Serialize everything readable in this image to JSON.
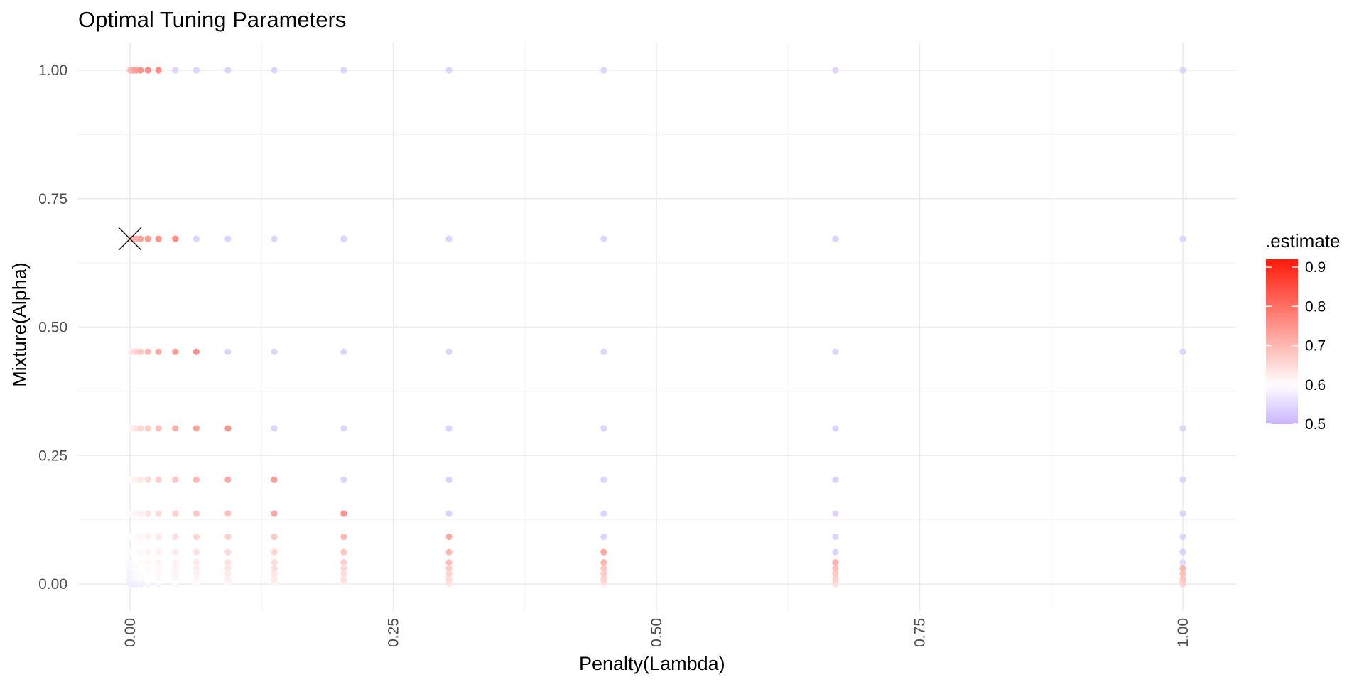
{
  "chart_data": {
    "type": "scatter",
    "title": "Optimal Tuning Parameters",
    "xlabel": "Penalty(Lambda)",
    "ylabel": "Mixture(Alpha)",
    "xlim": [
      -0.049,
      1.05
    ],
    "ylim": [
      -0.06,
      1.06
    ],
    "x_ticks": [
      0.0,
      0.25,
      0.5,
      0.75,
      1.0
    ],
    "x_tick_labels": [
      "0.00",
      "0.25",
      "0.50",
      "0.75",
      "1.00"
    ],
    "y_ticks": [
      0.0,
      0.25,
      0.5,
      0.75,
      1.0
    ],
    "y_tick_labels": [
      "0.00",
      "0.25",
      "0.50",
      "0.75",
      "1.00"
    ],
    "grid": true,
    "legend": {
      "title": ".estimate",
      "placement": "right",
      "min": 0.5,
      "max": 0.92,
      "ticks": [
        0.5,
        0.6,
        0.7,
        0.8,
        0.9
      ],
      "tick_labels": [
        "0.5",
        "0.6",
        "0.7",
        "0.8",
        "0.9"
      ],
      "colors": {
        "low": "#c8b4ff",
        "mid": "#ffffff",
        "mid_value": 0.6,
        "high": "#ff1a0a"
      }
    },
    "penalty_values": [
      0.0,
      0.001,
      0.003,
      0.006,
      0.01,
      0.017,
      0.027,
      0.043,
      0.063,
      0.093,
      0.137,
      0.203,
      0.303,
      0.45,
      0.67,
      1.0
    ],
    "mixture_values": [
      0.0,
      0.005,
      0.01,
      0.02,
      0.03,
      0.042,
      0.062,
      0.092,
      0.137,
      0.203,
      0.303,
      0.452,
      0.672,
      1.0
    ],
    "estimates": [
      [
        0.58,
        0.578,
        0.576,
        0.574,
        0.578,
        0.582,
        0.586,
        0.59,
        0.595,
        0.6,
        0.605,
        0.61,
        0.63,
        0.62,
        0.64,
        0.66
      ],
      [
        0.575,
        0.58,
        0.578,
        0.58,
        0.584,
        0.59,
        0.595,
        0.6,
        0.605,
        0.612,
        0.62,
        0.63,
        0.64,
        0.65,
        0.655,
        0.67
      ],
      [
        0.578,
        0.582,
        0.586,
        0.59,
        0.595,
        0.6,
        0.605,
        0.61,
        0.615,
        0.62,
        0.63,
        0.64,
        0.65,
        0.66,
        0.665,
        0.68
      ],
      [
        0.58,
        0.585,
        0.59,
        0.594,
        0.598,
        0.602,
        0.608,
        0.615,
        0.62,
        0.625,
        0.635,
        0.645,
        0.66,
        0.67,
        0.675,
        0.69
      ],
      [
        0.582,
        0.588,
        0.592,
        0.596,
        0.6,
        0.605,
        0.61,
        0.618,
        0.625,
        0.632,
        0.645,
        0.655,
        0.67,
        0.68,
        0.69,
        0.7
      ],
      [
        0.585,
        0.59,
        0.595,
        0.6,
        0.605,
        0.61,
        0.615,
        0.62,
        0.63,
        0.64,
        0.65,
        0.665,
        0.69,
        0.7,
        0.705,
        0.55
      ],
      [
        0.588,
        0.592,
        0.598,
        0.602,
        0.608,
        0.615,
        0.62,
        0.63,
        0.64,
        0.65,
        0.66,
        0.68,
        0.7,
        0.72,
        0.54,
        0.54
      ],
      [
        0.59,
        0.595,
        0.6,
        0.606,
        0.612,
        0.62,
        0.63,
        0.645,
        0.66,
        0.665,
        0.68,
        0.7,
        0.72,
        0.54,
        0.54,
        0.54
      ],
      [
        0.592,
        0.6,
        0.606,
        0.612,
        0.62,
        0.635,
        0.65,
        0.665,
        0.68,
        0.69,
        0.72,
        0.75,
        0.54,
        0.54,
        0.54,
        0.54
      ],
      [
        0.596,
        0.605,
        0.612,
        0.62,
        0.63,
        0.65,
        0.665,
        0.68,
        0.7,
        0.72,
        0.74,
        0.54,
        0.54,
        0.54,
        0.54,
        0.54
      ],
      [
        0.6,
        0.612,
        0.625,
        0.64,
        0.655,
        0.67,
        0.69,
        0.71,
        0.73,
        0.75,
        0.54,
        0.54,
        0.54,
        0.54,
        0.54,
        0.54
      ],
      [
        0.61,
        0.625,
        0.64,
        0.66,
        0.68,
        0.7,
        0.72,
        0.74,
        0.76,
        0.54,
        0.54,
        0.54,
        0.54,
        0.54,
        0.54,
        0.54
      ],
      [
        0.65,
        0.67,
        0.69,
        0.71,
        0.73,
        0.74,
        0.75,
        0.76,
        0.54,
        0.54,
        0.54,
        0.54,
        0.54,
        0.54,
        0.54,
        0.54
      ],
      [
        0.68,
        0.7,
        0.72,
        0.74,
        0.75,
        0.76,
        0.76,
        0.54,
        0.54,
        0.54,
        0.54,
        0.54,
        0.54,
        0.54,
        0.54,
        0.54
      ]
    ],
    "best": {
      "x": 0.0,
      "y": 0.672,
      "marker": "x-cross"
    }
  }
}
